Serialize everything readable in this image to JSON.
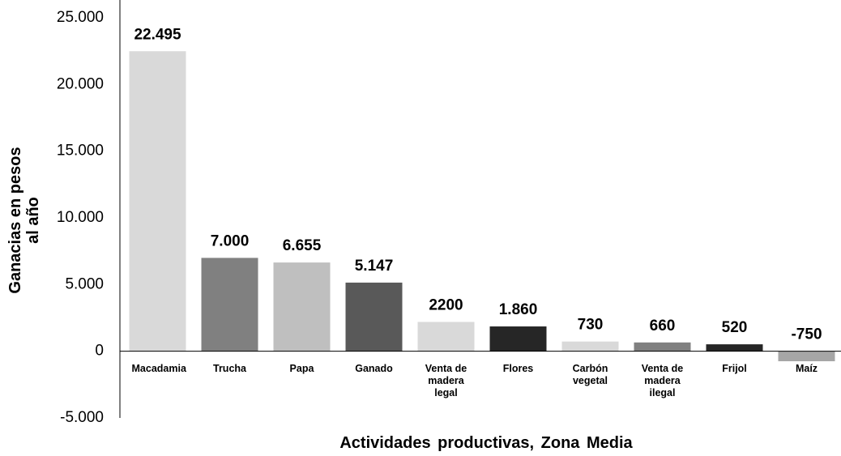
{
  "chart_data": {
    "type": "bar",
    "x_label": "Actividades productivas, Zona Media",
    "y_label": "Ganacias en pesos al año",
    "categories": [
      "Macadamia",
      "Trucha",
      "Papa",
      "Ganado",
      "Venta de madera legal",
      "Flores",
      "Carbón vegetal",
      "Venta de madera ilegal",
      "Frijol",
      "Maíz"
    ],
    "values": [
      22495,
      7000,
      6655,
      5147,
      2200,
      1860,
      730,
      660,
      520,
      -750
    ],
    "value_labels": [
      "22.495",
      "7.000",
      "6.655",
      "5.147",
      "2200",
      "1.860",
      "730",
      "660",
      "520",
      "-750"
    ],
    "colors": [
      "#d9d9d9",
      "#808080",
      "#bfbfbf",
      "#595959",
      "#d9d9d9",
      "#262626",
      "#d9d9d9",
      "#808080",
      "#262626",
      "#a6a6a6"
    ],
    "ylim": [
      -5000,
      25000
    ],
    "yticks": [
      {
        "value": -5000,
        "label": "-5.000"
      },
      0,
      {
        "value": 5000,
        "label": "5.000"
      },
      {
        "value": 10000,
        "label": "10.000"
      },
      {
        "value": 15000,
        "label": "15.000"
      },
      {
        "value": 20000,
        "label": "20.000"
      },
      {
        "value": 25000,
        "label": "25.000"
      }
    ],
    "grid": false
  }
}
